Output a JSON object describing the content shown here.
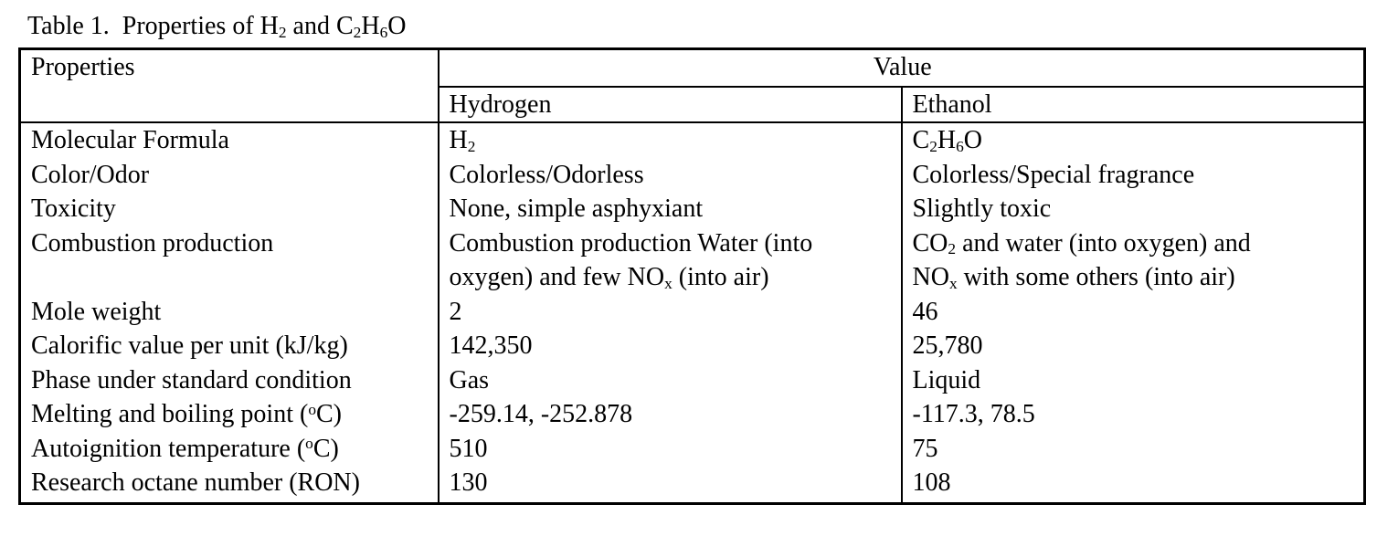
{
  "page": {
    "background_color": "#ffffff",
    "text_color": "#000000",
    "border_color": "#000000"
  },
  "caption": {
    "segments": [
      {
        "t": "Table 1.  Properties of H"
      },
      {
        "t": "2",
        "s": "sub"
      },
      {
        "t": " and C"
      },
      {
        "t": "2",
        "s": "sub"
      },
      {
        "t": "H"
      },
      {
        "t": "6",
        "s": "sub"
      },
      {
        "t": "O"
      }
    ]
  },
  "table": {
    "header": {
      "properties": "Properties",
      "value": "Value",
      "substance_columns": [
        "Hydrogen",
        "Ethanol"
      ]
    },
    "rows": [
      {
        "property": "Molecular Formula",
        "hydrogen": [
          {
            "t": "H"
          },
          {
            "t": "2",
            "s": "sub"
          }
        ],
        "ethanol": [
          {
            "t": "C"
          },
          {
            "t": "2",
            "s": "sub"
          },
          {
            "t": "H"
          },
          {
            "t": "6",
            "s": "sub"
          },
          {
            "t": "O"
          }
        ]
      },
      {
        "property": "Color/Odor",
        "hydrogen": "Colorless/Odorless",
        "ethanol": "Colorless/Special fragrance"
      },
      {
        "property": "Toxicity",
        "hydrogen": "None, simple asphyxiant",
        "ethanol": "Slightly toxic"
      },
      {
        "property": "Combustion production",
        "hydrogen": [
          {
            "t": "Combustion production Water (into"
          },
          {
            "br": true
          },
          {
            "t": "oxygen) and few NO"
          },
          {
            "t": "x",
            "s": "sub"
          },
          {
            "t": " (into air)"
          }
        ],
        "ethanol": [
          {
            "t": "CO"
          },
          {
            "t": "2",
            "s": "sub"
          },
          {
            "t": " and water (into oxygen) and"
          },
          {
            "br": true
          },
          {
            "t": "NO"
          },
          {
            "t": "x",
            "s": "sub"
          },
          {
            "t": " with some others (into air)"
          }
        ]
      },
      {
        "property": "Mole weight",
        "hydrogen": "2",
        "ethanol": "46"
      },
      {
        "property": "Calorific value per unit (kJ/kg)",
        "hydrogen": "142,350",
        "ethanol": "25,780"
      },
      {
        "property": "Phase under standard condition",
        "hydrogen": "Gas",
        "ethanol": "Liquid"
      },
      {
        "property": [
          {
            "t": "Melting and boiling point ("
          },
          {
            "t": "o",
            "s": "sup"
          },
          {
            "t": "C)"
          }
        ],
        "hydrogen": "-259.14, -252.878",
        "ethanol": "-117.3, 78.5"
      },
      {
        "property": [
          {
            "t": "Autoignition temperature ("
          },
          {
            "t": "o",
            "s": "sup"
          },
          {
            "t": "C)"
          }
        ],
        "hydrogen": "510",
        "ethanol": "75"
      },
      {
        "property": "Research octane number (RON)",
        "hydrogen": "130",
        "ethanol": "108"
      }
    ]
  }
}
